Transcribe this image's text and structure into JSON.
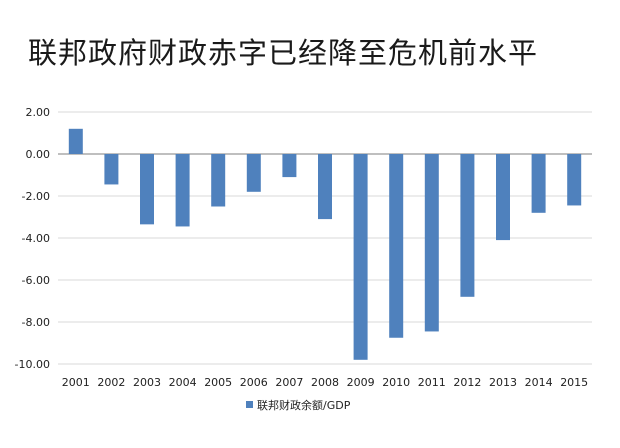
{
  "title": "联邦政府财政赤字已经降至危机前水平",
  "colors": {
    "bar": "#4f81bd",
    "grid": "#d9d9d9",
    "axis": "#7f7f7f"
  },
  "chart_data": {
    "type": "bar",
    "title": "联邦政府财政赤字已经降至危机前水平",
    "categories": [
      "2001",
      "2002",
      "2003",
      "2004",
      "2005",
      "2006",
      "2007",
      "2008",
      "2009",
      "2010",
      "2011",
      "2012",
      "2013",
      "2014",
      "2015"
    ],
    "series": [
      {
        "name": "联邦财政余额/GDP",
        "values": [
          1.2,
          -1.45,
          -3.35,
          -3.45,
          -2.5,
          -1.8,
          -1.1,
          -3.1,
          -9.8,
          -8.75,
          -8.45,
          -6.8,
          -4.1,
          -2.8,
          -2.45
        ]
      }
    ],
    "yticks": [
      "2.00",
      "0.00",
      "-2.00",
      "-4.00",
      "-6.00",
      "-8.00",
      "-10.00"
    ],
    "ylim": [
      -10,
      2
    ],
    "grid": true,
    "legend_position": "bottom-left"
  }
}
